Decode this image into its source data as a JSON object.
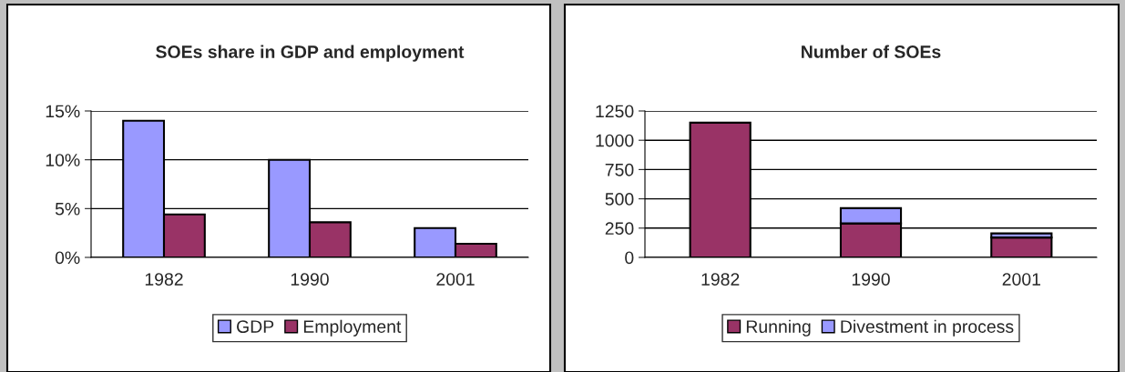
{
  "chart_data": [
    {
      "type": "bar",
      "title": "SOEs share in GDP and employment",
      "categories": [
        "1982",
        "1990",
        "2001"
      ],
      "series": [
        {
          "name": "GDP",
          "color": "#9999ff",
          "values": [
            14,
            10,
            3
          ]
        },
        {
          "name": "Employment",
          "color": "#993366",
          "values": [
            4.4,
            3.6,
            1.4
          ]
        }
      ],
      "ylim": [
        0,
        15
      ],
      "yticks": [
        {
          "value": 0,
          "label": "0%"
        },
        {
          "value": 5,
          "label": "5%"
        },
        {
          "value": 10,
          "label": "10%"
        },
        {
          "value": 15,
          "label": "15%"
        }
      ],
      "grid": "y",
      "legend": "bottom"
    },
    {
      "type": "bar",
      "title": "Number of SOEs",
      "categories": [
        "1982",
        "1990",
        "2001"
      ],
      "stacked": true,
      "series": [
        {
          "name": "Running",
          "color": "#993366",
          "values": [
            1150,
            290,
            170
          ]
        },
        {
          "name": "Divestment in process",
          "color": "#9999ff",
          "values": [
            null,
            130,
            35
          ]
        }
      ],
      "ylim": [
        0,
        1250
      ],
      "yticks": [
        0,
        250,
        500,
        750,
        1000,
        1250
      ],
      "grid": "y",
      "legend": "bottom"
    }
  ]
}
